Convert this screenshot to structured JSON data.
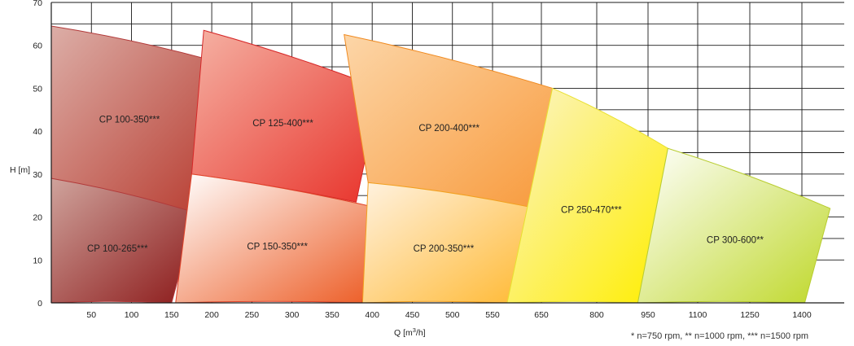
{
  "chart_data": {
    "type": "area",
    "xlabel": "Q [m",
    "xlabel_sup": "3",
    "xlabel_tail": "/h]",
    "ylabel": "H [m]",
    "ylim": [
      0,
      70
    ],
    "y_ticks": [
      "0",
      "10",
      "20",
      "30",
      "40",
      "50",
      "60",
      "70"
    ],
    "x_ticks": [
      "50",
      "100",
      "150",
      "200",
      "250",
      "300",
      "350",
      "400",
      "450",
      "500",
      "550",
      "650",
      "800",
      "950",
      "1100",
      "1250",
      "1400"
    ],
    "x_scale": "piecewise (linear to 550, compressed above)",
    "grid": true,
    "footnote": "* n=750 rpm, ** n=1000 rpm, *** n=1500 rpm",
    "regions": [
      {
        "name": "CP 100-350***",
        "gradient": [
          "#dcaea7",
          "#b73a2e"
        ],
        "stroke": "#b23a3a",
        "polygon": [
          [
            0,
            64.5
          ],
          [
            210,
            56
          ],
          [
            180,
            21
          ],
          [
            0,
            29
          ]
        ]
      },
      {
        "name": "CP 100-265***",
        "gradient": [
          "#cfa39c",
          "#8c1a1a"
        ],
        "stroke": "#b23a3a",
        "polygon": [
          [
            0,
            29
          ],
          [
            180,
            21
          ],
          [
            150,
            0
          ],
          [
            0,
            0
          ]
        ]
      },
      {
        "name": "CP 125-400***",
        "gradient": [
          "#f5b2a4",
          "#e8322a"
        ],
        "stroke": "#d62828",
        "polygon": [
          [
            190,
            63.5
          ],
          [
            410,
            50
          ],
          [
            380,
            23.5
          ],
          [
            175,
            30
          ]
        ]
      },
      {
        "name": "CP 150-350***",
        "gradient": [
          "#ffffff",
          "#ec5a22"
        ],
        "stroke": "#e0442a",
        "polygon": [
          [
            175,
            30
          ],
          [
            410,
            22
          ],
          [
            387,
            0
          ],
          [
            155,
            0
          ]
        ]
      },
      {
        "name": "CP 200-400***",
        "gradient": [
          "#fcd6a8",
          "#f89a3c"
        ],
        "stroke": "#f08a20",
        "polygon": [
          [
            365,
            62.5
          ],
          [
            680,
            50
          ],
          [
            630,
            22
          ],
          [
            395,
            28
          ]
        ]
      },
      {
        "name": "CP 200-350***",
        "gradient": [
          "#fff2e0",
          "#ffb830"
        ],
        "stroke": "#f2a020",
        "polygon": [
          [
            395,
            28
          ],
          [
            640,
            22
          ],
          [
            580,
            0
          ],
          [
            388,
            0
          ]
        ]
      },
      {
        "name": "CP 250-470***",
        "gradient": [
          "#fbf4c8",
          "#ffee00"
        ],
        "stroke": "#e8e030",
        "polygon": [
          [
            680,
            50
          ],
          [
            1010,
            36
          ],
          [
            920,
            0
          ],
          [
            580,
            0
          ]
        ]
      },
      {
        "name": "CP 300-600**",
        "gradient": [
          "#ffffff",
          "#bfd82a"
        ],
        "stroke": "#b8cc30",
        "polygon": [
          [
            1010,
            36
          ],
          [
            1500,
            22
          ],
          [
            1410,
            0
          ],
          [
            920,
            0
          ]
        ]
      }
    ]
  }
}
